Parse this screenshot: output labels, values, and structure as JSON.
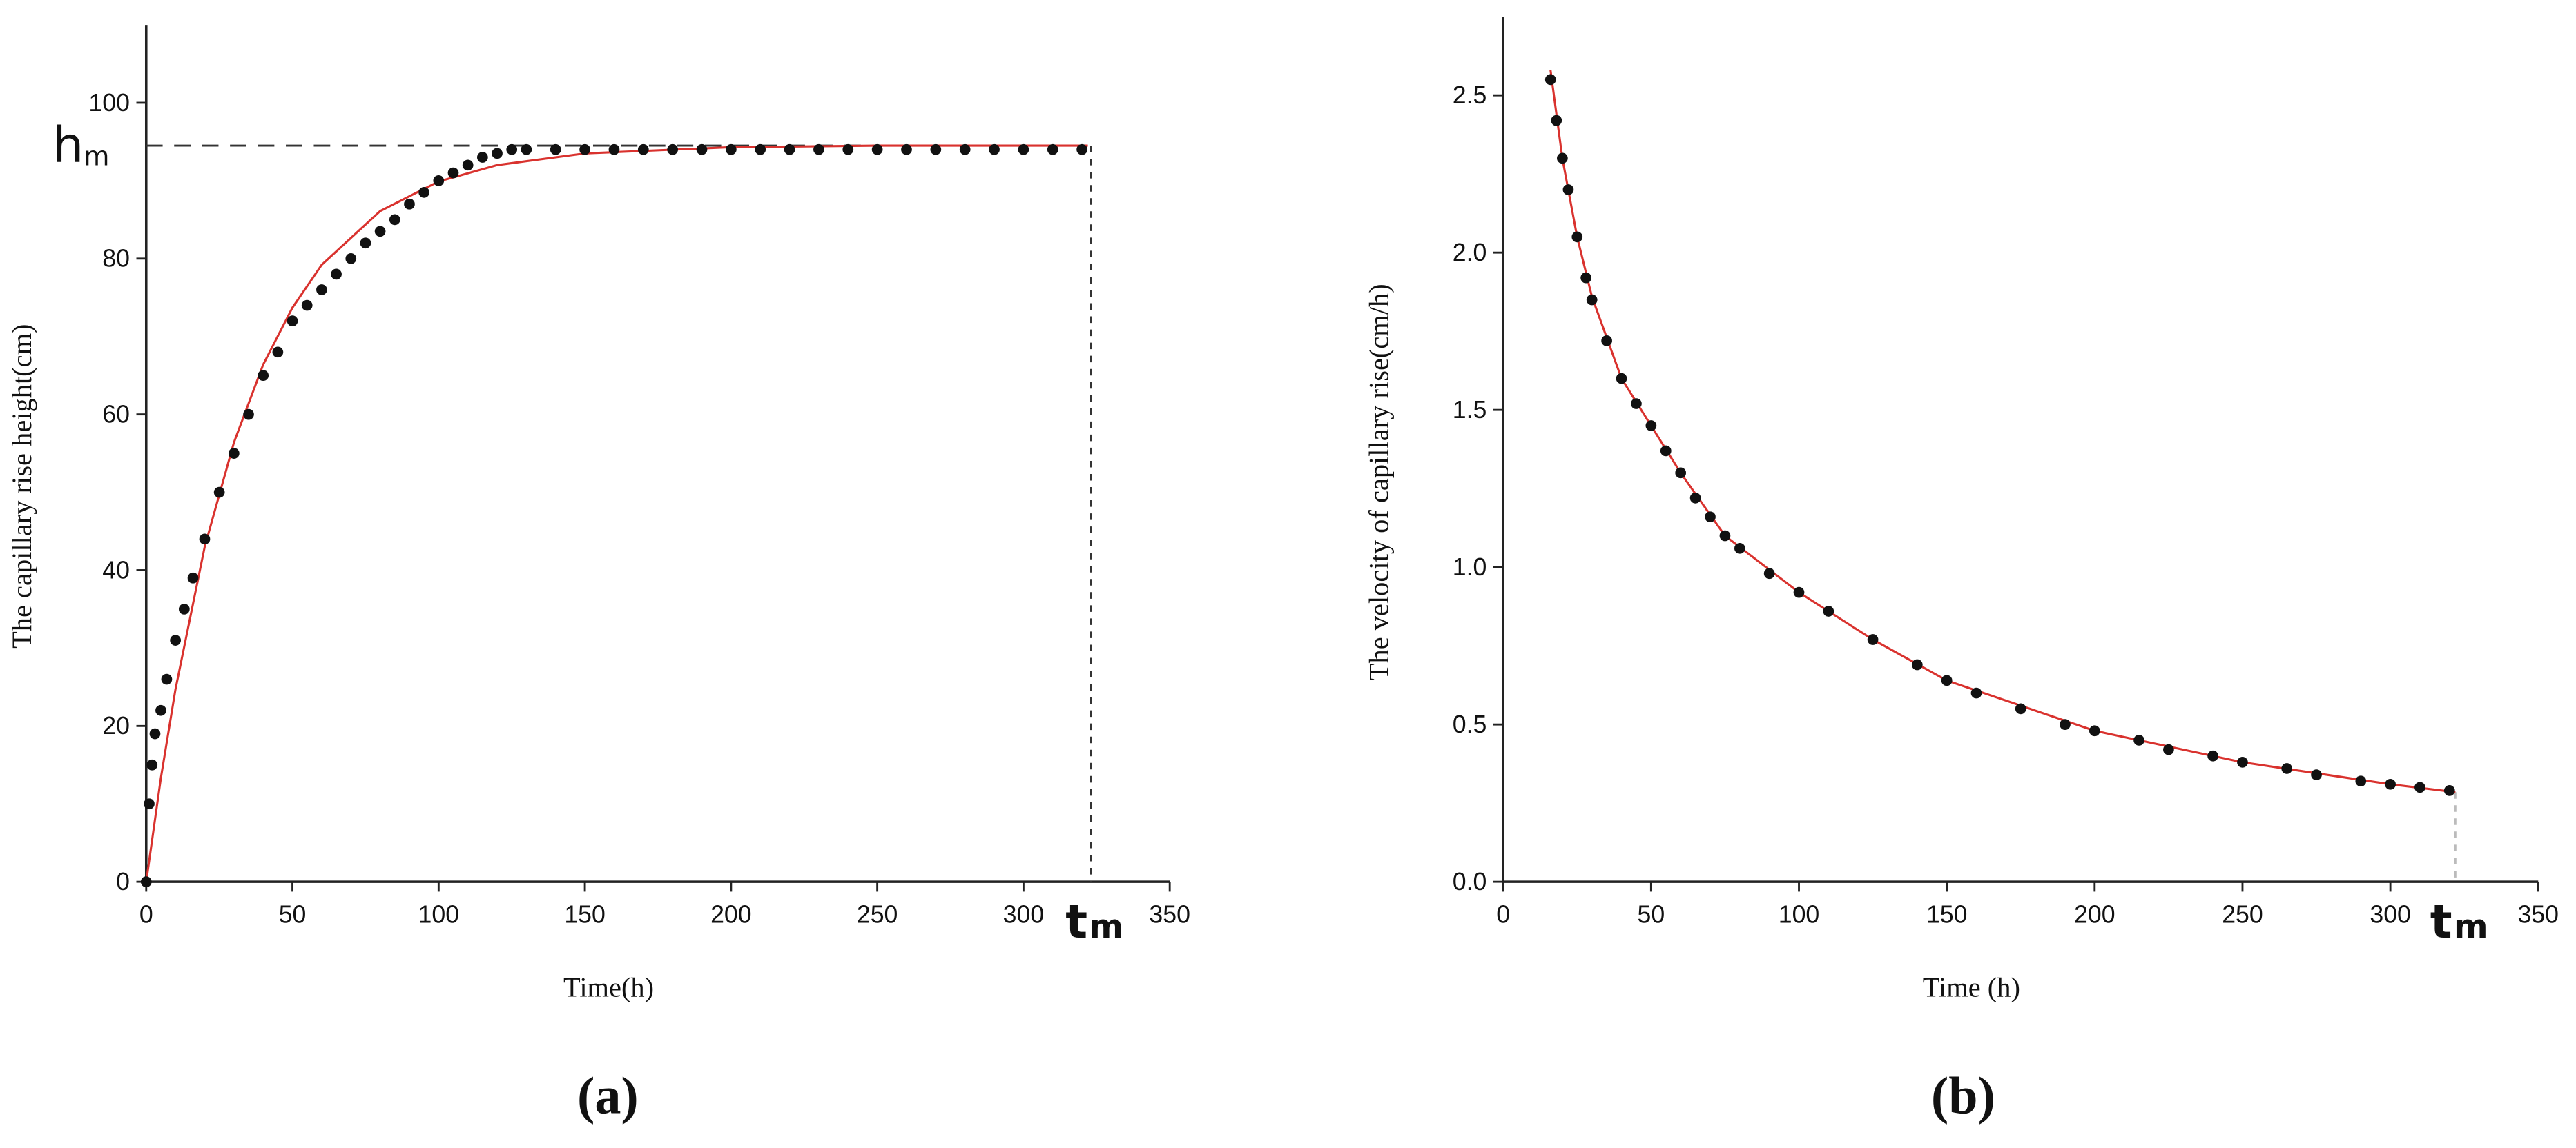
{
  "chart_data": [
    {
      "type": "scatter",
      "panel_label": "(a)",
      "xlabel": "Time(h)",
      "ylabel": "The capillary rise height(cm)",
      "xlim": [
        0,
        350
      ],
      "xticks": [
        0,
        50,
        100,
        150,
        200,
        250,
        300,
        350
      ],
      "ylim": [
        0,
        110
      ],
      "yticks": [
        0,
        20,
        40,
        60,
        80,
        100
      ],
      "color": "#111111",
      "fit_color": "#d9322e",
      "x": [
        0,
        1,
        2,
        3,
        5,
        7,
        10,
        13,
        16,
        20,
        25,
        30,
        35,
        40,
        45,
        50,
        55,
        60,
        65,
        70,
        75,
        80,
        85,
        90,
        95,
        100,
        105,
        110,
        115,
        120,
        125,
        130,
        140,
        150,
        160,
        170,
        180,
        190,
        200,
        210,
        220,
        230,
        240,
        250,
        260,
        270,
        280,
        290,
        300,
        310,
        320
      ],
      "values": [
        0,
        10,
        15,
        19,
        22,
        26,
        31,
        35,
        39,
        44,
        50,
        55,
        60,
        65,
        68,
        72,
        74,
        76,
        78,
        80,
        82,
        83.5,
        85,
        87,
        88.5,
        90,
        91,
        92,
        93,
        93.5,
        94,
        94,
        94,
        94,
        94,
        94,
        94,
        94,
        94,
        94,
        94,
        94,
        94,
        94,
        94,
        94,
        94,
        94,
        94,
        94,
        94
      ],
      "fit_x": [
        0,
        5,
        10,
        20,
        30,
        40,
        50,
        60,
        80,
        100,
        120,
        150,
        200,
        250,
        322
      ],
      "fit_values": [
        0,
        13.3,
        24.7,
        43.0,
        56.4,
        66.4,
        73.7,
        79.2,
        86.1,
        89.9,
        92.0,
        93.5,
        94.3,
        94.5,
        94.5
      ],
      "hm": {
        "text": "h",
        "subscript": "m",
        "y": 94.5
      },
      "tm": {
        "text": "t",
        "subscript": "m",
        "x": 323
      }
    },
    {
      "type": "scatter",
      "panel_label": "(b)",
      "xlabel": "Time (h)",
      "ylabel": "The velocity of capillary rise(cm/h)",
      "xlim": [
        0,
        350
      ],
      "xticks": [
        0,
        50,
        100,
        150,
        200,
        250,
        300,
        350
      ],
      "ylim": [
        0,
        2.75
      ],
      "yticks": [
        {
          "value": 0,
          "label": "0.0"
        },
        0.5,
        {
          "value": 1,
          "label": "1.0"
        },
        1.5,
        {
          "value": 2,
          "label": "2.0"
        },
        2.5
      ],
      "color": "#111111",
      "fit_color": "#d9322e",
      "x": [
        16,
        18,
        20,
        22,
        25,
        28,
        30,
        35,
        40,
        45,
        50,
        55,
        60,
        65,
        70,
        75,
        80,
        90,
        100,
        110,
        125,
        140,
        150,
        160,
        175,
        190,
        200,
        215,
        225,
        240,
        250,
        265,
        275,
        290,
        300,
        310,
        320
      ],
      "values": [
        2.55,
        2.42,
        2.3,
        2.2,
        2.05,
        1.92,
        1.85,
        1.72,
        1.6,
        1.52,
        1.45,
        1.37,
        1.3,
        1.22,
        1.16,
        1.1,
        1.06,
        0.98,
        0.92,
        0.86,
        0.77,
        0.69,
        0.64,
        0.6,
        0.55,
        0.5,
        0.48,
        0.45,
        0.42,
        0.4,
        0.38,
        0.36,
        0.34,
        0.32,
        0.31,
        0.3,
        0.29
      ],
      "fit_x": [
        16,
        20,
        25,
        30,
        40,
        50,
        60,
        75,
        100,
        125,
        150,
        200,
        250,
        300,
        322
      ],
      "fit_values": [
        2.58,
        2.3,
        2.05,
        1.86,
        1.6,
        1.45,
        1.3,
        1.1,
        0.92,
        0.77,
        0.64,
        0.48,
        0.38,
        0.31,
        0.285
      ],
      "tm": {
        "text": "t",
        "subscript": "m",
        "x": 322
      }
    }
  ]
}
